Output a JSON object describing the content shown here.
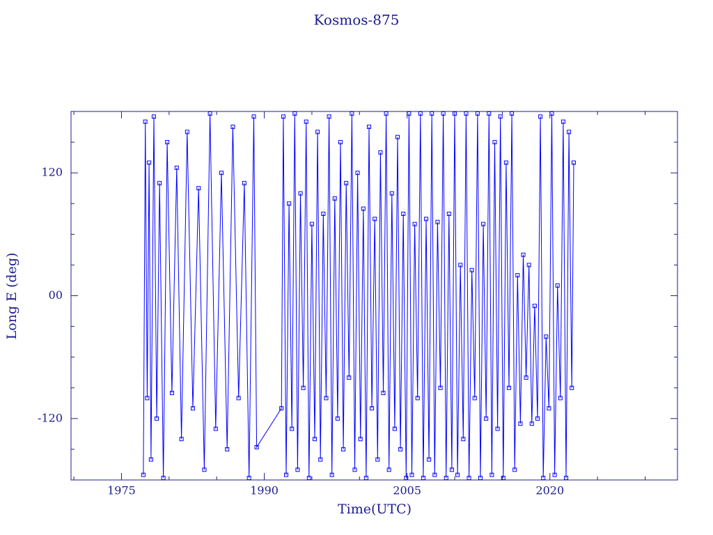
{
  "chart_data": {
    "type": "line",
    "title": "Kosmos-875",
    "xlabel": "Time(UTC)",
    "ylabel": "Long E (deg)",
    "color": "#0000ff",
    "marker": "square",
    "xlim": [
      1969.7,
      2033.4
    ],
    "xticks": [
      1975,
      1990,
      2005,
      2020
    ],
    "xminor_ticks": [
      1970,
      1980,
      1985,
      1995,
      2000,
      2010,
      2015,
      2025,
      2030
    ],
    "ylim": [
      -180,
      180
    ],
    "yticks": [
      -120,
      {
        "value": 0,
        "label": "00"
      },
      120
    ],
    "yminor_ticks": [
      -150,
      -90,
      -60,
      -30,
      30,
      60,
      90,
      150
    ],
    "x": [
      1977.3,
      1977.5,
      1977.7,
      1977.9,
      1978.1,
      1978.4,
      1978.7,
      1979.0,
      1979.4,
      1979.8,
      1980.3,
      1980.8,
      1981.3,
      1981.9,
      1982.5,
      1983.1,
      1983.7,
      1984.3,
      1984.9,
      1985.5,
      1986.1,
      1986.7,
      1987.3,
      1987.9,
      1988.4,
      1988.9,
      1989.2,
      1991.8,
      1992.0,
      1992.3,
      1992.6,
      1992.9,
      1993.2,
      1993.5,
      1993.8,
      1994.1,
      1994.4,
      1994.7,
      1995.0,
      1995.3,
      1995.6,
      1995.9,
      1996.2,
      1996.5,
      1996.8,
      1997.1,
      1997.4,
      1997.7,
      1998.0,
      1998.3,
      1998.6,
      1998.9,
      1999.2,
      1999.5,
      1999.8,
      2000.1,
      2000.4,
      2000.7,
      2001.0,
      2001.3,
      2001.6,
      2001.9,
      2002.2,
      2002.5,
      2002.8,
      2003.1,
      2003.4,
      2003.7,
      2004.0,
      2004.3,
      2004.6,
      2004.9,
      2005.2,
      2005.5,
      2005.8,
      2006.1,
      2006.4,
      2006.7,
      2007.0,
      2007.3,
      2007.6,
      2007.9,
      2008.2,
      2008.5,
      2008.8,
      2009.1,
      2009.4,
      2009.7,
      2010.0,
      2010.3,
      2010.6,
      2010.9,
      2011.2,
      2011.5,
      2011.8,
      2012.1,
      2012.4,
      2012.7,
      2013.0,
      2013.3,
      2013.6,
      2013.9,
      2014.2,
      2014.5,
      2014.8,
      2015.1,
      2015.4,
      2015.7,
      2016.0,
      2016.3,
      2016.6,
      2016.9,
      2017.2,
      2017.5,
      2017.8,
      2018.1,
      2018.4,
      2018.7,
      2019.0,
      2019.3,
      2019.6,
      2019.9,
      2020.2,
      2020.5,
      2020.8,
      2021.1,
      2021.4,
      2021.7,
      2022.0,
      2022.3,
      2022.5
    ],
    "values": [
      -175,
      170,
      -100,
      130,
      -160,
      175,
      -120,
      110,
      -178,
      150,
      -95,
      125,
      -140,
      160,
      -110,
      105,
      -170,
      178,
      -130,
      120,
      -150,
      165,
      -100,
      110,
      -178,
      175,
      -148,
      -110,
      175,
      -175,
      90,
      -130,
      178,
      -170,
      100,
      -90,
      170,
      -178,
      70,
      -140,
      160,
      -160,
      80,
      -100,
      175,
      -175,
      95,
      -120,
      150,
      -150,
      110,
      -80,
      178,
      -170,
      120,
      -140,
      85,
      -178,
      165,
      -110,
      75,
      -160,
      140,
      -95,
      178,
      -170,
      100,
      -130,
      155,
      -150,
      80,
      -178,
      178,
      -175,
      70,
      -100,
      178,
      -178,
      75,
      -160,
      178,
      -175,
      72,
      -90,
      178,
      -178,
      80,
      -170,
      178,
      -175,
      30,
      -140,
      178,
      -178,
      25,
      -100,
      178,
      -178,
      70,
      -120,
      178,
      -175,
      150,
      -130,
      175,
      -178,
      130,
      -90,
      178,
      -170,
      20,
      -125,
      40,
      -80,
      30,
      -125,
      -10,
      -120,
      175,
      -178,
      -40,
      -110,
      178,
      -175,
      10,
      -100,
      170,
      -178,
      160,
      -90,
      130
    ]
  }
}
